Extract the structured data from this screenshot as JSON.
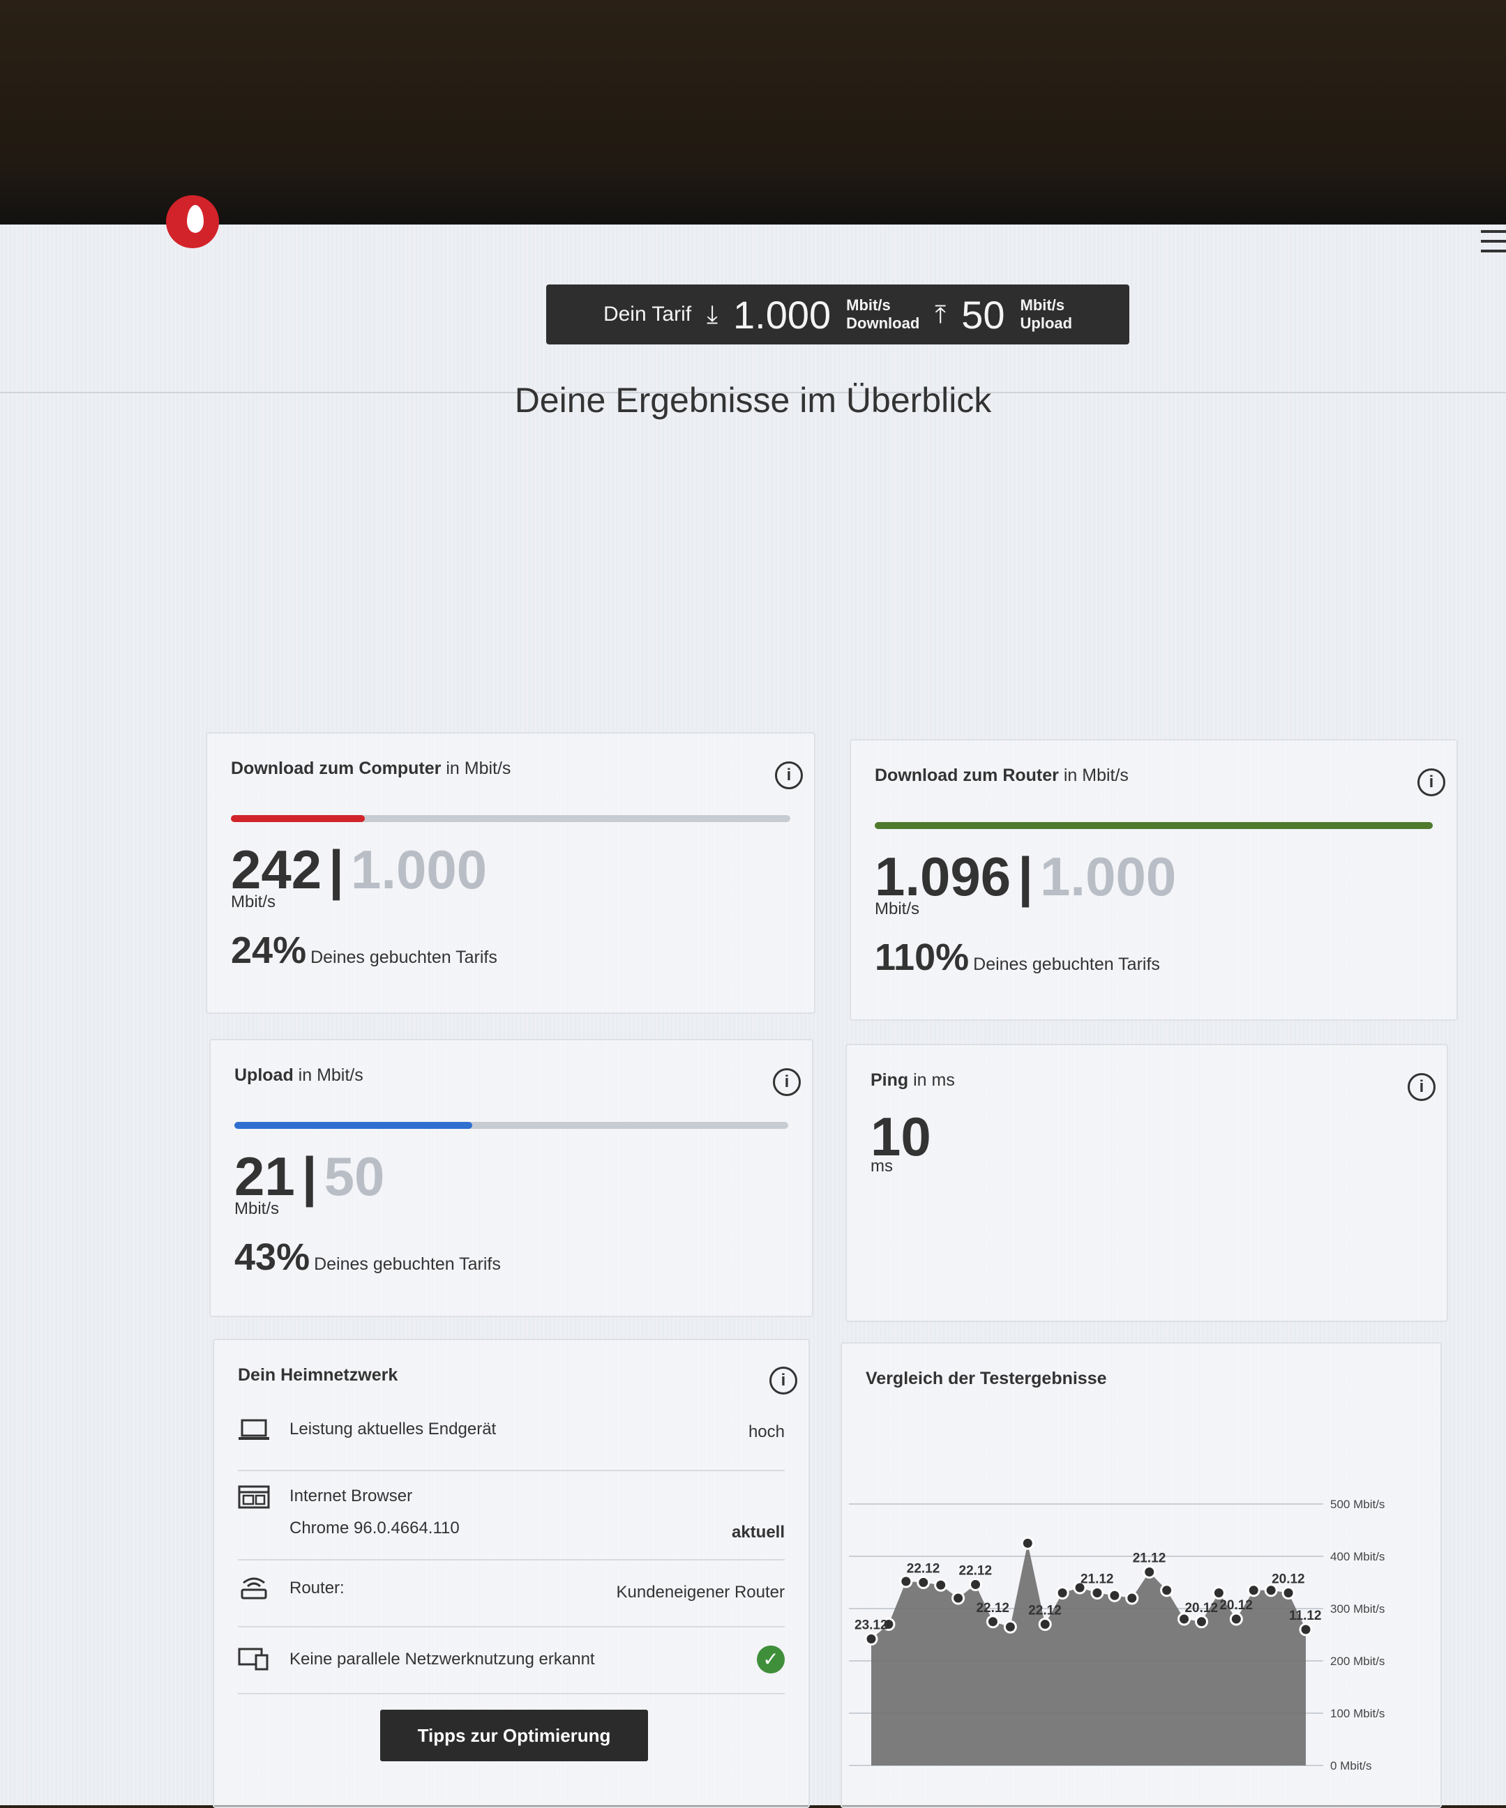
{
  "header": {
    "menu_icon": "hamburger-icon",
    "logo": "vodafone-logo"
  },
  "tarif": {
    "label": "Dein Tarif",
    "download_value": "1.000",
    "download_unit": "Mbit/s",
    "download_label": "Download",
    "upload_value": "50",
    "upload_unit": "Mbit/s",
    "upload_label": "Upload"
  },
  "headline": "Deine Ergebnisse im Überblick",
  "download_computer": {
    "title_bold": "Download zum Computer",
    "title_rest": " in Mbit/s",
    "measured": "242",
    "booked": "1.000",
    "unit": "Mbit/s",
    "percent": "24%",
    "percent_label": "Deines gebuchten Tarifs",
    "fill_fraction": 0.24,
    "color": "#d2232a"
  },
  "download_router": {
    "title_bold": "Download zum Router",
    "title_rest": " in Mbit/s",
    "measured": "1.096",
    "booked": "1.000",
    "unit": "Mbit/s",
    "percent": "110%",
    "percent_label": "Deines gebuchten Tarifs",
    "fill_fraction": 1.0,
    "color": "#4e7a2e"
  },
  "upload": {
    "title_bold": "Upload",
    "title_rest": " in Mbit/s",
    "measured": "21",
    "booked": "50",
    "unit": "Mbit/s",
    "percent": "43%",
    "percent_label": "Deines gebuchten Tarifs",
    "fill_fraction": 0.43,
    "color": "#2f6fd0"
  },
  "ping": {
    "title_bold": "Ping",
    "title_rest": " in ms",
    "value": "10",
    "unit": "ms"
  },
  "heimnetzwerk": {
    "title": "Dein Heimnetzwerk",
    "rows": [
      {
        "label": "Leistung aktuelles Endgerät",
        "value": "hoch"
      },
      {
        "label": "Internet Browser",
        "sub": "Chrome 96.0.4664.110",
        "value": "aktuell"
      },
      {
        "label": "Router:",
        "value": "Kundeneigener Router"
      },
      {
        "label": "Keine parallele Netzwerknutzung erkannt",
        "value": "✓"
      }
    ],
    "button": "Tipps zur Optimierung"
  },
  "vergleich": {
    "title": "Vergleich der Testergebnisse"
  },
  "chart_data": {
    "type": "area",
    "title": "Vergleich der Testergebnisse",
    "ylim": [
      0,
      500
    ],
    "yticks": [
      0,
      100,
      200,
      300,
      400,
      500
    ],
    "ytick_labels": [
      "0 Mbit/s",
      "100 Mbit/s",
      "200 Mbit/s",
      "300 Mbit/s",
      "400 Mbit/s",
      "500 Mbit/s"
    ],
    "grid": true,
    "values": [
      242,
      270,
      352,
      350,
      345,
      320,
      346,
      275,
      265,
      425,
      270,
      330,
      340,
      330,
      325,
      320,
      370,
      335,
      280,
      275,
      330,
      280,
      335,
      335,
      330,
      260
    ],
    "point_labels": [
      {
        "index": 0,
        "text": "23.12"
      },
      {
        "index": 3,
        "text": "22.12"
      },
      {
        "index": 6,
        "text": "22.12"
      },
      {
        "index": 7,
        "text": "22.12"
      },
      {
        "index": 10,
        "text": "22.12"
      },
      {
        "index": 13,
        "text": "21.12"
      },
      {
        "index": 16,
        "text": "21.12"
      },
      {
        "index": 19,
        "text": "20.12"
      },
      {
        "index": 21,
        "text": "20.12"
      },
      {
        "index": 24,
        "text": "20.12"
      },
      {
        "index": 25,
        "text": "11.12"
      }
    ],
    "fill_color": "#6f6f6f",
    "point_color": "#2f2f2f"
  }
}
